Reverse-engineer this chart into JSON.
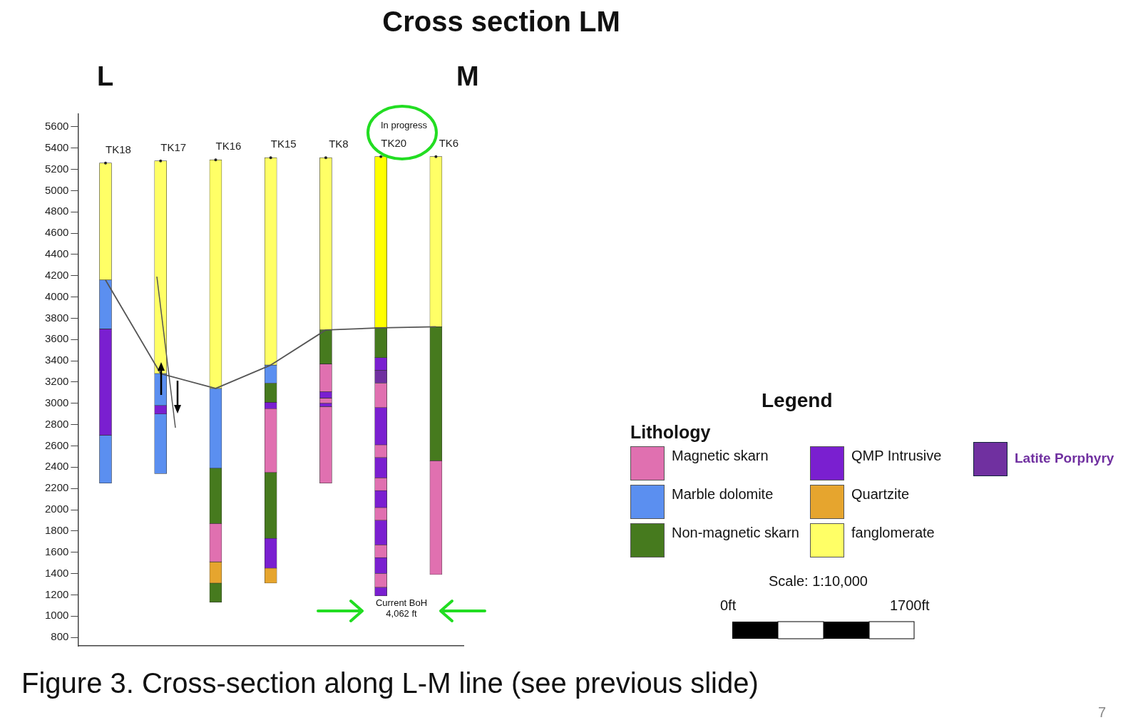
{
  "chart_data": {
    "type": "bar",
    "title": "Cross section LM",
    "ylim": [
      720,
      5720
    ],
    "yticks": [
      800,
      1000,
      1200,
      1400,
      1600,
      1800,
      2000,
      2200,
      2400,
      2600,
      2800,
      3000,
      3200,
      3400,
      3600,
      3800,
      4000,
      4200,
      4400,
      4600,
      4800,
      5000,
      5200,
      5400,
      5600
    ],
    "grid": false,
    "legend": "right",
    "legend_title": "Lithology",
    "categories": [
      "TK18",
      "TK17",
      "TK16",
      "TK15",
      "TK8",
      "TK20",
      "TK6"
    ],
    "series": [
      {
        "name": "Magnetic skarn",
        "color": "#e070b0",
        "values": [
          null,
          null,
          360,
          600,
          260,
          230,
          1070
        ],
        "base": [
          null,
          null,
          1510,
          2350,
          3110,
          2960,
          1390
        ]
      },
      {
        "name": "Marble dolomite",
        "color": "#5b8ff0",
        "values": [
          460,
          300,
          750,
          170,
          null,
          null,
          null
        ],
        "base": [
          3700,
          2980,
          2390,
          3190,
          null,
          null,
          null
        ]
      },
      {
        "name": "Non-magnetic skarn",
        "color": "#467a1e",
        "values": [
          null,
          null,
          520,
          180,
          320,
          280,
          1260
        ],
        "base": [
          null,
          null,
          1870,
          3010,
          3370,
          3430,
          2460
        ]
      },
      {
        "name": "QMP Intrusive",
        "color": "#7a1fd0",
        "values": [
          1000,
          80,
          null,
          60,
          60,
          120,
          null
        ],
        "base": [
          2700,
          2900,
          null,
          2950,
          3050,
          3310,
          null
        ]
      },
      {
        "name": "Quartzite",
        "color": "#e6a52e",
        "values": [
          null,
          null,
          200,
          140,
          null,
          null,
          null
        ],
        "base": [
          null,
          null,
          1310,
          1310,
          null,
          null,
          null
        ]
      },
      {
        "name": "fanglomerate",
        "color": "#ffff66",
        "colors": [
          "#ffff66",
          "#ffff66",
          "#ffff66",
          "#ffff66",
          "#ffff66",
          "#ffff00",
          "#ffff66"
        ],
        "values": [
          1100,
          2000,
          2150,
          1950,
          1620,
          1610,
          1600
        ],
        "base": [
          4160,
          3280,
          3140,
          3360,
          3690,
          3710,
          3720
        ]
      },
      {
        "name": "Latite Porphyry",
        "color": "#7030a0",
        "values": [
          null,
          null,
          null,
          null,
          null,
          120,
          null
        ],
        "base": [
          null,
          null,
          null,
          null,
          null,
          3190,
          null
        ]
      },
      {
        "color": "#5b8ff0",
        "values": [
          450,
          560,
          null,
          null,
          null,
          null,
          null
        ],
        "base": [
          2250,
          2340,
          null,
          null,
          null,
          null,
          null
        ]
      },
      {
        "color": "#7a1fd0",
        "values": [
          null,
          null,
          null,
          280,
          30,
          350,
          null
        ],
        "base": [
          null,
          null,
          null,
          1450,
          2970,
          2610,
          null
        ]
      },
      {
        "color": "#7a1fd0",
        "values": [
          null,
          null,
          null,
          null,
          null,
          190,
          null
        ],
        "base": [
          null,
          null,
          null,
          null,
          null,
          2300,
          null
        ]
      },
      {
        "color": "#7a1fd0",
        "values": [
          null,
          null,
          null,
          null,
          null,
          160,
          null
        ],
        "base": [
          null,
          null,
          null,
          null,
          null,
          2020,
          null
        ]
      },
      {
        "color": "#7a1fd0",
        "values": [
          null,
          null,
          null,
          null,
          null,
          230,
          null
        ],
        "base": [
          null,
          null,
          null,
          null,
          null,
          1670,
          null
        ]
      },
      {
        "color": "#7a1fd0",
        "values": [
          null,
          null,
          null,
          null,
          null,
          150,
          null
        ],
        "base": [
          null,
          null,
          null,
          null,
          null,
          1400,
          null
        ]
      },
      {
        "color": "#7a1fd0",
        "values": [
          null,
          null,
          null,
          null,
          null,
          80,
          null
        ],
        "base": [
          null,
          null,
          null,
          null,
          null,
          1190,
          null
        ]
      },
      {
        "color": "#e070b0",
        "values": [
          null,
          null,
          null,
          null,
          50,
          120,
          null
        ],
        "base": [
          null,
          null,
          null,
          null,
          3000,
          2490,
          null
        ]
      },
      {
        "color": "#e070b0",
        "values": [
          null,
          null,
          null,
          null,
          720,
          120,
          null
        ],
        "base": [
          null,
          null,
          null,
          null,
          2250,
          2180,
          null
        ]
      },
      {
        "color": "#e070b0",
        "values": [
          null,
          null,
          null,
          null,
          null,
          120,
          null
        ],
        "base": [
          null,
          null,
          null,
          null,
          null,
          1900,
          null
        ]
      },
      {
        "color": "#e070b0",
        "values": [
          null,
          null,
          null,
          null,
          null,
          120,
          null
        ],
        "base": [
          null,
          null,
          null,
          null,
          null,
          1550,
          null
        ]
      },
      {
        "color": "#e070b0",
        "values": [
          null,
          null,
          null,
          null,
          null,
          130,
          null
        ],
        "base": [
          null,
          null,
          null,
          null,
          null,
          1270,
          null
        ]
      },
      {
        "color": "#467a1e",
        "values": [
          null,
          null,
          180,
          620,
          null,
          null,
          null
        ],
        "base": [
          null,
          null,
          1130,
          1730,
          null,
          null,
          null
        ]
      },
      {
        "type": "line",
        "color": "#555555",
        "values": [
          4160,
          3280,
          3140,
          3360,
          3690,
          3710,
          3720
        ]
      }
    ],
    "annotations": [
      "L",
      "M",
      "Legend",
      "Scale: 1:10,000",
      "0ft",
      "1700ft",
      "Figure 3. Cross-section along L-M line (see previous slide)",
      "7",
      "In progress",
      "Current BoH 4,062 ft"
    ]
  }
}
